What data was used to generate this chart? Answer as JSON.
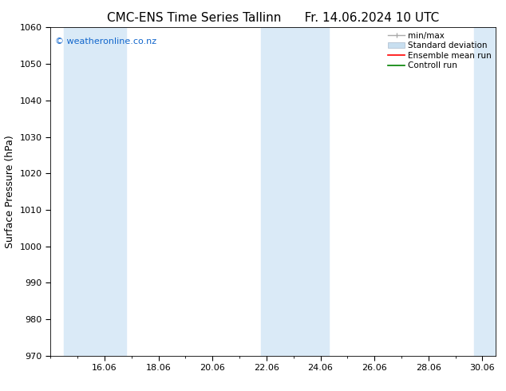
{
  "title_left": "CMC-ENS Time Series Tallinn",
  "title_right": "Fr. 14.06.2024 10 UTC",
  "ylabel": "Surface Pressure (hPa)",
  "ylim": [
    970,
    1060
  ],
  "yticks": [
    970,
    980,
    990,
    1000,
    1010,
    1020,
    1030,
    1040,
    1050,
    1060
  ],
  "x_tick_positions": [
    16,
    18,
    20,
    22,
    24,
    26,
    28,
    30
  ],
  "xtick_labels": [
    "16.06",
    "18.06",
    "20.06",
    "22.06",
    "24.06",
    "26.06",
    "28.06",
    "30.06"
  ],
  "xlim_start": 14.0,
  "xlim_end": 30.5,
  "shaded_bands": [
    {
      "x_start": 14.5,
      "x_end": 16.8
    },
    {
      "x_start": 21.8,
      "x_end": 24.3
    },
    {
      "x_start": 29.7,
      "x_end": 30.5
    }
  ],
  "shade_color": "#daeaf7",
  "watermark_text": "© weatheronline.co.nz",
  "watermark_color": "#1166cc",
  "legend_items": [
    {
      "label": "min/max",
      "color": "#aaaaaa"
    },
    {
      "label": "Standard deviation",
      "color": "#c8dff0"
    },
    {
      "label": "Ensemble mean run",
      "color": "#ff0000"
    },
    {
      "label": "Controll run",
      "color": "#008000"
    }
  ],
  "bg_color": "#ffffff",
  "title_fontsize": 11,
  "ylabel_fontsize": 9,
  "tick_fontsize": 8,
  "legend_fontsize": 7.5
}
